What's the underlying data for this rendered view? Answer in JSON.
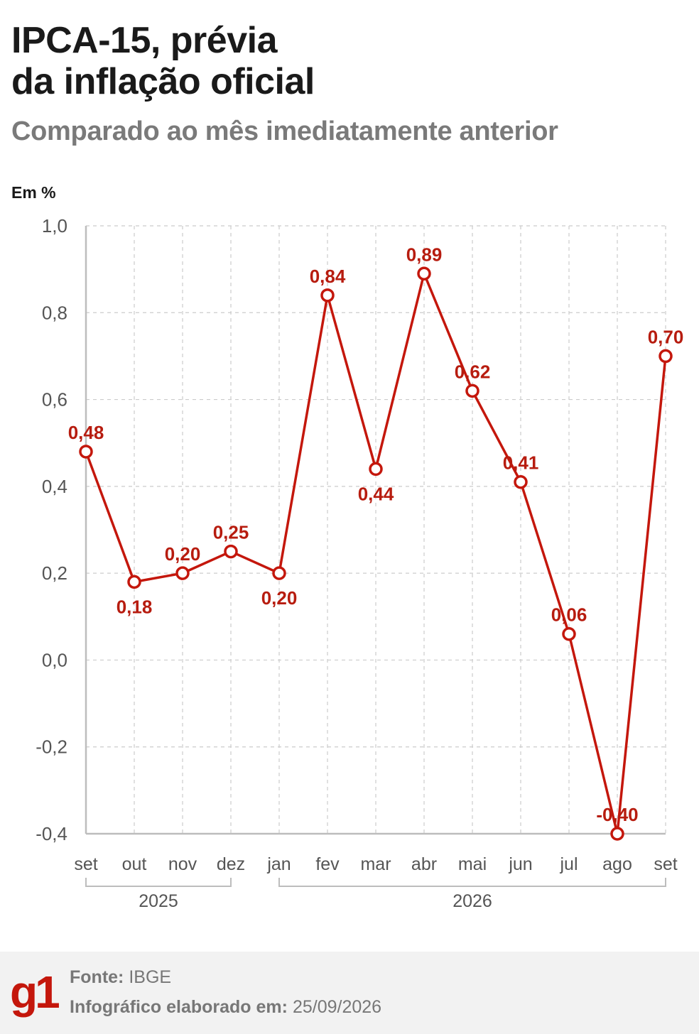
{
  "header": {
    "title_line1": "IPCA-15, prévia",
    "title_line2": "da inflação oficial",
    "subtitle": "Comparado ao mês imediatamente anterior",
    "unit": "Em %"
  },
  "chart_data": {
    "type": "line",
    "categories": [
      "set",
      "out",
      "nov",
      "dez",
      "jan",
      "fev",
      "mar",
      "abr",
      "mai",
      "jun",
      "jul",
      "ago",
      "set"
    ],
    "values": [
      0.48,
      0.18,
      0.2,
      0.25,
      0.2,
      0.84,
      0.44,
      0.89,
      0.62,
      0.41,
      0.06,
      -0.4,
      0.7
    ],
    "data_labels": [
      "0,48",
      "0,18",
      "0,20",
      "0,25",
      "0,20",
      "0,84",
      "0,44",
      "0,89",
      "0,62",
      "0,41",
      "0,06",
      "-0,40",
      "0,70"
    ],
    "yticks": [
      1.0,
      0.8,
      0.6,
      0.4,
      0.2,
      0.0,
      -0.2,
      -0.4
    ],
    "ytick_labels": [
      "1,0",
      "0,8",
      "0,6",
      "0,4",
      "0,2",
      "0,0",
      "-0,2",
      "-0,4"
    ],
    "ylim": [
      -0.4,
      1.0
    ],
    "year_groups": [
      {
        "label": "2025",
        "from": 0,
        "to": 3
      },
      {
        "label": "2026",
        "from": 4,
        "to": 12
      }
    ],
    "grid": true,
    "colors": {
      "line": "#c4170c",
      "label": "#b71c0f",
      "grid": "#cccccc",
      "axis": "#bdbdbd",
      "tick": "#555555"
    }
  },
  "footer": {
    "logo": "g1",
    "source_label": "Fonte:",
    "source_value": "IBGE",
    "date_label": "Infográfico elaborado em:",
    "date_value": "25/09/2026"
  }
}
